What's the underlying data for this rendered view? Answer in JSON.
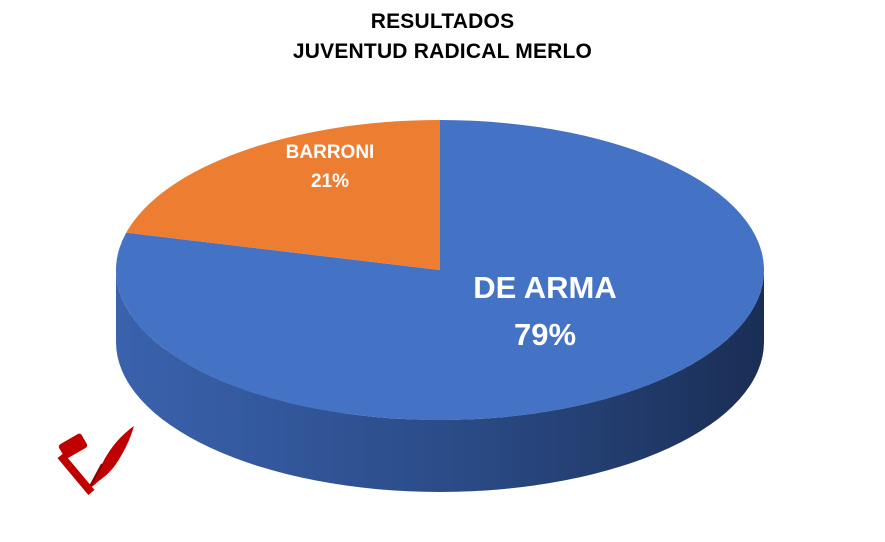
{
  "chart_data": {
    "type": "pie",
    "title": [
      "RESULTADOS",
      "JUVENTUD RADICAL MERLO"
    ],
    "slices": [
      {
        "label": "DE ARMA",
        "value": 79,
        "value_label": "79%",
        "color": "#4472C4"
      },
      {
        "label": "BARRONI",
        "value": 21,
        "value_label": "21%",
        "color": "#ED7D31"
      }
    ],
    "style": "3d"
  },
  "logo": {
    "icon": "hammer-quill-logo-icon",
    "color": "#C00000"
  }
}
